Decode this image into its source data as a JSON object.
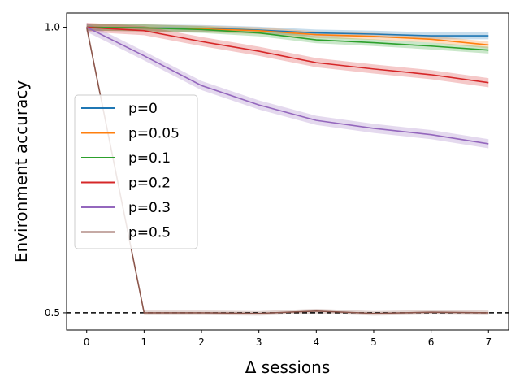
{
  "chart_data": {
    "type": "line",
    "title": "",
    "xlabel": "Δ sessions",
    "ylabel": "Environment accuracy",
    "xlim": [
      -0.35,
      7.35
    ],
    "ylim": [
      0.47,
      1.025
    ],
    "x_ticks": [
      "0",
      "1",
      "2",
      "3",
      "4",
      "5",
      "6",
      "7"
    ],
    "y_ticks": [
      {
        "value": 1.0,
        "label": "1.0"
      },
      {
        "value": 0.5,
        "label": "0.5"
      }
    ],
    "reference_line": {
      "value": 0.5,
      "style": "dashed",
      "color": "#000000"
    },
    "legend_position": "center-left",
    "grid": false,
    "x": [
      0,
      1,
      2,
      3,
      4,
      5,
      6,
      7
    ],
    "series": [
      {
        "name": "p=0",
        "color": "#1f77b4",
        "values": [
          1.0,
          0.999,
          0.998,
          0.995,
          0.99,
          0.988,
          0.985,
          0.985
        ],
        "band": 0.006
      },
      {
        "name": "p=0.05",
        "color": "#ff7f0e",
        "values": [
          1.0,
          0.999,
          0.997,
          0.994,
          0.987,
          0.984,
          0.979,
          0.969
        ],
        "band": 0.006
      },
      {
        "name": "p=0.1",
        "color": "#2ca02c",
        "values": [
          1.0,
          0.999,
          0.996,
          0.99,
          0.978,
          0.973,
          0.967,
          0.96
        ],
        "band": 0.006
      },
      {
        "name": "p=0.2",
        "color": "#d62728",
        "values": [
          1.0,
          0.994,
          0.975,
          0.958,
          0.938,
          0.927,
          0.917,
          0.903
        ],
        "band": 0.008
      },
      {
        "name": "p=0.3",
        "color": "#9467bd",
        "values": [
          1.0,
          0.95,
          0.898,
          0.864,
          0.837,
          0.823,
          0.812,
          0.796
        ],
        "band": 0.008
      },
      {
        "name": "p=0.5",
        "color": "#8c564b",
        "values": [
          1.0,
          0.5,
          0.5,
          0.499,
          0.503,
          0.499,
          0.501,
          0.5
        ],
        "band": 0.004
      }
    ]
  }
}
